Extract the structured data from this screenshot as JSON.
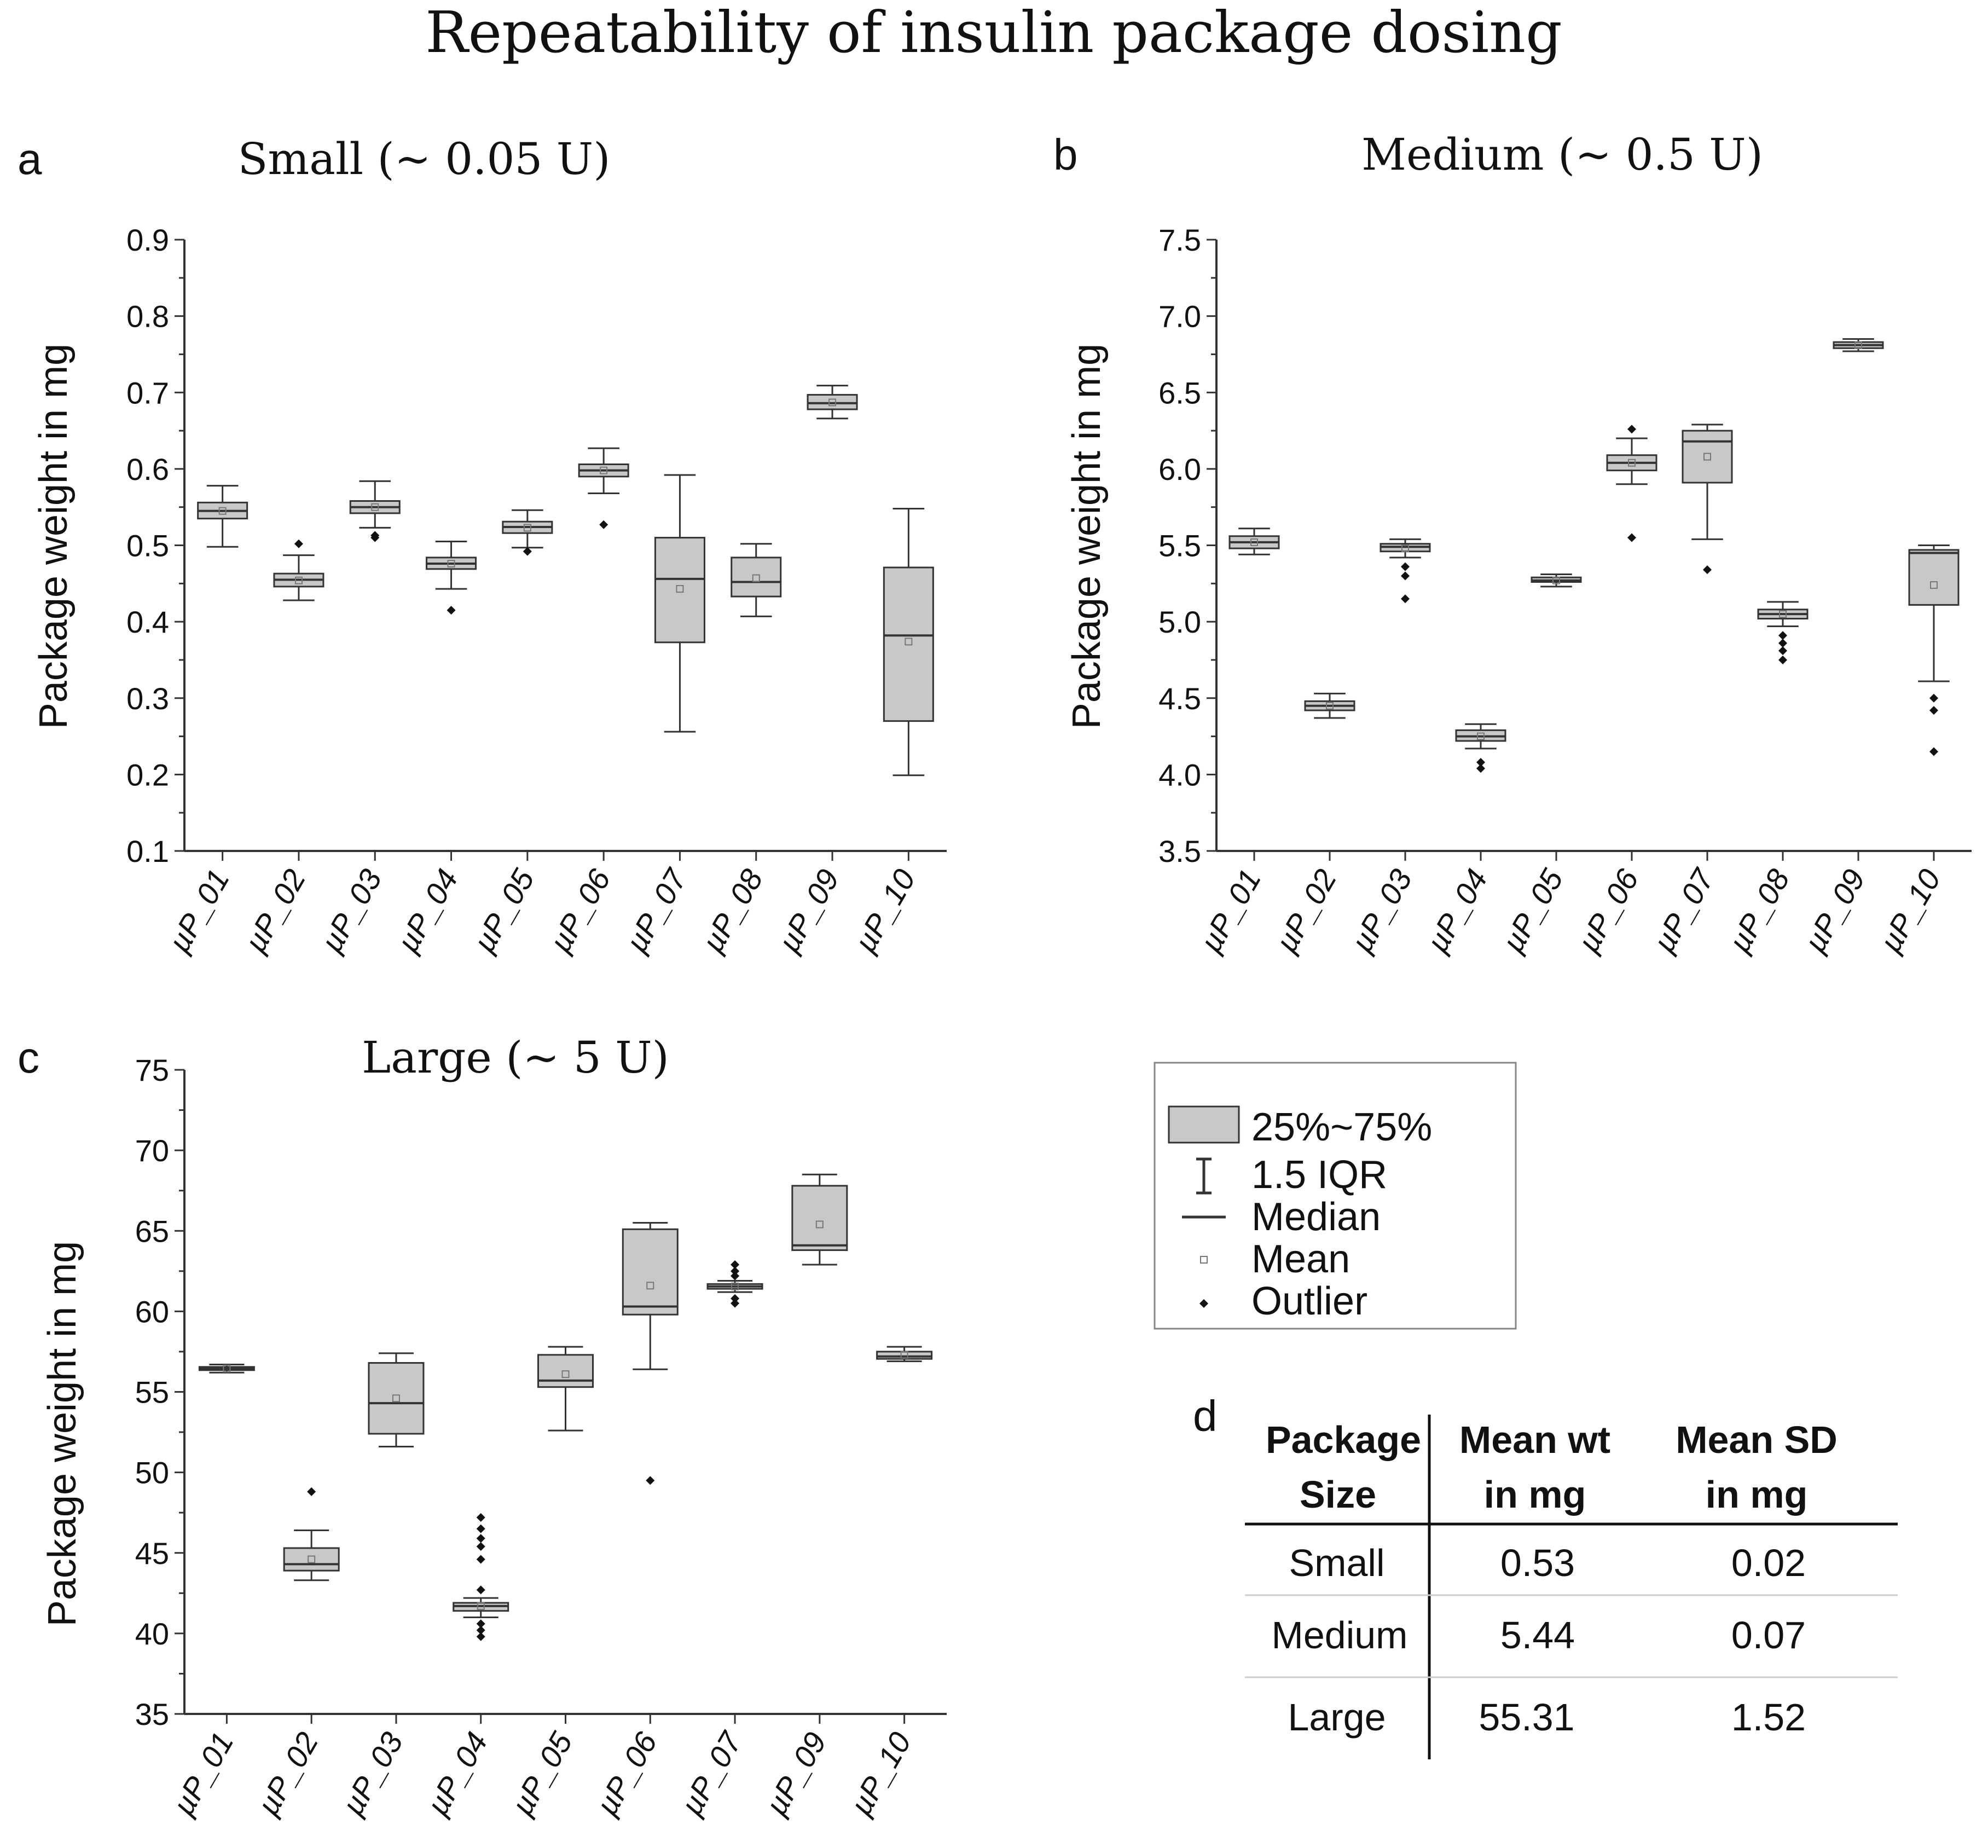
{
  "figure_title": "Repeatability of insulin package dosing",
  "colors": {
    "box_fill": "#c8c8c8",
    "stroke": "#333333",
    "text": "#111111",
    "table_rule": "#cccccc"
  },
  "chart_data": [
    {
      "panel_letter": "a",
      "type": "box",
      "title": "Small (~ 0.05 U)",
      "ylabel": "Package weight in mg",
      "ylim": [
        0.1,
        0.9
      ],
      "yticks": [
        "0.1",
        "0.2",
        "0.3",
        "0.4",
        "0.5",
        "0.6",
        "0.7",
        "0.8",
        "0.9"
      ],
      "categories": [
        "µP_01",
        "µP_02",
        "µP_03",
        "µP_04",
        "µP_05",
        "µP_06",
        "µP_07",
        "µP_08",
        "µP_09",
        "µP_10"
      ],
      "series": [
        {
          "name": "µP_01",
          "whisker_low": 0.498,
          "q1": 0.535,
          "median": 0.545,
          "q3": 0.556,
          "whisker_high": 0.578,
          "mean": 0.545,
          "outliers": []
        },
        {
          "name": "µP_02",
          "whisker_low": 0.428,
          "q1": 0.446,
          "median": 0.455,
          "q3": 0.463,
          "whisker_high": 0.487,
          "mean": 0.454,
          "outliers": [
            0.502
          ]
        },
        {
          "name": "µP_03",
          "whisker_low": 0.523,
          "q1": 0.542,
          "median": 0.55,
          "q3": 0.558,
          "whisker_high": 0.584,
          "mean": 0.55,
          "outliers": [
            0.51,
            0.513
          ]
        },
        {
          "name": "µP_04",
          "whisker_low": 0.443,
          "q1": 0.469,
          "median": 0.476,
          "q3": 0.484,
          "whisker_high": 0.505,
          "mean": 0.476,
          "outliers": [
            0.415
          ]
        },
        {
          "name": "µP_05",
          "whisker_low": 0.497,
          "q1": 0.516,
          "median": 0.524,
          "q3": 0.531,
          "whisker_high": 0.546,
          "mean": 0.523,
          "outliers": [
            0.492
          ]
        },
        {
          "name": "µP_06",
          "whisker_low": 0.568,
          "q1": 0.59,
          "median": 0.598,
          "q3": 0.606,
          "whisker_high": 0.627,
          "mean": 0.598,
          "outliers": [
            0.527
          ]
        },
        {
          "name": "µP_07",
          "whisker_low": 0.256,
          "q1": 0.373,
          "median": 0.456,
          "q3": 0.51,
          "whisker_high": 0.592,
          "mean": 0.443,
          "outliers": []
        },
        {
          "name": "µP_08",
          "whisker_low": 0.407,
          "q1": 0.433,
          "median": 0.452,
          "q3": 0.484,
          "whisker_high": 0.502,
          "mean": 0.457,
          "outliers": []
        },
        {
          "name": "µP_09",
          "whisker_low": 0.666,
          "q1": 0.678,
          "median": 0.686,
          "q3": 0.697,
          "whisker_high": 0.709,
          "mean": 0.687,
          "outliers": []
        },
        {
          "name": "µP_10",
          "whisker_low": 0.199,
          "q1": 0.27,
          "median": 0.382,
          "q3": 0.471,
          "whisker_high": 0.548,
          "mean": 0.374,
          "outliers": []
        }
      ]
    },
    {
      "panel_letter": "b",
      "type": "box",
      "title": "Medium (~ 0.5 U)",
      "ylabel": "Package weight in mg",
      "ylim": [
        3.5,
        7.5
      ],
      "yticks": [
        "3.5",
        "4.0",
        "4.5",
        "5.0",
        "5.5",
        "6.0",
        "6.5",
        "7.0",
        "7.5"
      ],
      "categories": [
        "µP_01",
        "µP_02",
        "µP_03",
        "µP_04",
        "µP_05",
        "µP_06",
        "µP_07",
        "µP_08",
        "µP_09",
        "µP_10"
      ],
      "series": [
        {
          "name": "µP_01",
          "whisker_low": 5.44,
          "q1": 5.48,
          "median": 5.52,
          "q3": 5.56,
          "whisker_high": 5.61,
          "mean": 5.52,
          "outliers": []
        },
        {
          "name": "µP_02",
          "whisker_low": 4.37,
          "q1": 4.42,
          "median": 4.45,
          "q3": 4.48,
          "whisker_high": 4.53,
          "mean": 4.45,
          "outliers": []
        },
        {
          "name": "µP_03",
          "whisker_low": 5.42,
          "q1": 5.46,
          "median": 5.49,
          "q3": 5.51,
          "whisker_high": 5.54,
          "mean": 5.48,
          "outliers": [
            5.36,
            5.3,
            5.15
          ]
        },
        {
          "name": "µP_04",
          "whisker_low": 4.17,
          "q1": 4.22,
          "median": 4.25,
          "q3": 4.29,
          "whisker_high": 4.33,
          "mean": 4.25,
          "outliers": [
            4.08,
            4.04
          ]
        },
        {
          "name": "µP_05",
          "whisker_low": 5.23,
          "q1": 5.26,
          "median": 5.27,
          "q3": 5.29,
          "whisker_high": 5.31,
          "mean": 5.27,
          "outliers": []
        },
        {
          "name": "µP_06",
          "whisker_low": 5.9,
          "q1": 5.99,
          "median": 6.04,
          "q3": 6.09,
          "whisker_high": 6.2,
          "mean": 6.04,
          "outliers": [
            6.26,
            5.55
          ]
        },
        {
          "name": "µP_07",
          "whisker_low": 5.54,
          "q1": 5.91,
          "median": 6.18,
          "q3": 6.25,
          "whisker_high": 6.29,
          "mean": 6.08,
          "outliers": [
            5.34
          ]
        },
        {
          "name": "µP_08",
          "whisker_low": 4.97,
          "q1": 5.02,
          "median": 5.05,
          "q3": 5.08,
          "whisker_high": 5.13,
          "mean": 5.05,
          "outliers": [
            4.91,
            4.86,
            4.81,
            4.75
          ]
        },
        {
          "name": "µP_09",
          "whisker_low": 6.77,
          "q1": 6.79,
          "median": 6.81,
          "q3": 6.83,
          "whisker_high": 6.85,
          "mean": 6.81,
          "outliers": []
        },
        {
          "name": "µP_10",
          "whisker_low": 4.61,
          "q1": 5.11,
          "median": 5.45,
          "q3": 5.47,
          "whisker_high": 5.5,
          "mean": 5.24,
          "outliers": [
            4.5,
            4.42,
            4.15
          ]
        }
      ]
    },
    {
      "panel_letter": "c",
      "type": "box",
      "title": "Large (~ 5 U)",
      "ylabel": "Package weight in mg",
      "ylim": [
        35,
        75
      ],
      "yticks": [
        "35",
        "40",
        "45",
        "50",
        "55",
        "60",
        "65",
        "70",
        "75"
      ],
      "categories": [
        "µP_01",
        "µP_02",
        "µP_03",
        "µP_04",
        "µP_05",
        "µP_06",
        "µP_07",
        "µP_09",
        "µP_10"
      ],
      "series": [
        {
          "name": "µP_01",
          "whisker_low": 56.2,
          "q1": 56.35,
          "median": 56.45,
          "q3": 56.55,
          "whisker_high": 56.7,
          "mean": 56.45,
          "outliers": []
        },
        {
          "name": "µP_02",
          "whisker_low": 43.3,
          "q1": 43.9,
          "median": 44.3,
          "q3": 45.3,
          "whisker_high": 46.4,
          "mean": 44.6,
          "outliers": [
            48.8
          ]
        },
        {
          "name": "µP_03",
          "whisker_low": 51.6,
          "q1": 52.4,
          "median": 54.3,
          "q3": 56.8,
          "whisker_high": 57.4,
          "mean": 54.6,
          "outliers": []
        },
        {
          "name": "µP_04",
          "whisker_low": 41.0,
          "q1": 41.4,
          "median": 41.7,
          "q3": 41.9,
          "whisker_high": 42.2,
          "mean": 41.7,
          "outliers": [
            47.2,
            46.5,
            45.9,
            45.4,
            44.6,
            42.7,
            40.6,
            40.2,
            39.8
          ]
        },
        {
          "name": "µP_05",
          "whisker_low": 52.6,
          "q1": 55.3,
          "median": 55.7,
          "q3": 57.3,
          "whisker_high": 57.8,
          "mean": 56.1,
          "outliers": []
        },
        {
          "name": "µP_06",
          "whisker_low": 56.4,
          "q1": 59.8,
          "median": 60.3,
          "q3": 65.1,
          "whisker_high": 65.5,
          "mean": 61.6,
          "outliers": [
            49.5
          ]
        },
        {
          "name": "µP_07",
          "whisker_low": 61.2,
          "q1": 61.4,
          "median": 61.55,
          "q3": 61.7,
          "whisker_high": 61.9,
          "mean": 61.55,
          "outliers": [
            62.9,
            62.5,
            62.2,
            60.8,
            60.5
          ]
        },
        {
          "name": "µP_09",
          "whisker_low": 62.9,
          "q1": 63.8,
          "median": 64.1,
          "q3": 67.8,
          "whisker_high": 68.5,
          "mean": 65.4,
          "outliers": []
        },
        {
          "name": "µP_10",
          "whisker_low": 56.9,
          "q1": 57.05,
          "median": 57.2,
          "q3": 57.5,
          "whisker_high": 57.8,
          "mean": 57.3,
          "outliers": []
        }
      ]
    }
  ],
  "legend": {
    "items": [
      {
        "symbol": "box",
        "label": "25%~75%"
      },
      {
        "symbol": "whisker",
        "label": "1.5 IQR"
      },
      {
        "symbol": "median",
        "label": "Median"
      },
      {
        "symbol": "mean",
        "label": "Mean"
      },
      {
        "symbol": "outlier",
        "label": "Outlier"
      }
    ]
  },
  "table": {
    "panel_letter": "d",
    "headers": [
      [
        "Package",
        "Size"
      ],
      [
        "Mean wt",
        "in mg"
      ],
      [
        "Mean SD",
        "in mg"
      ]
    ],
    "rows": [
      [
        "Small",
        "0.53",
        "0.02"
      ],
      [
        "Medium",
        "5.44",
        "0.07"
      ],
      [
        "Large",
        "55.31",
        "1.52"
      ]
    ]
  }
}
